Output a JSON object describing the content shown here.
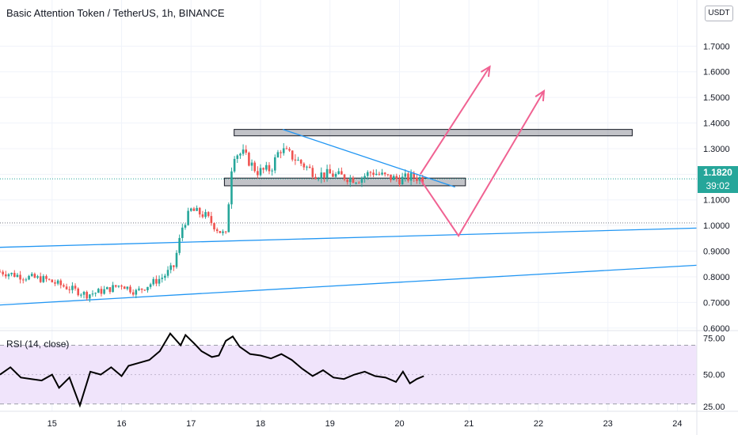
{
  "header": {
    "title": "Basic Attention Token / TetherUS, 1h, BINANCE",
    "currency": "USDT"
  },
  "price_badge": {
    "price": "1.1820",
    "countdown": "39:02"
  },
  "rsi": {
    "label": "RSI (14, close)"
  },
  "colors": {
    "up": "#26a69a",
    "down": "#ef5350",
    "trend": "#2196f3",
    "projection": "#f06292",
    "rsi_line": "#000000",
    "rsi_band": "#f0e4fb"
  },
  "chart_data": [
    {
      "type": "candlestick",
      "title": "Basic Attention Token / TetherUS, 1h, BINANCE",
      "y_axis_side": "right",
      "ylim": [
        0.59,
        1.88
      ],
      "yticks": [
        "0.6000",
        "0.7000",
        "0.8000",
        "0.9000",
        "1.0000",
        "1.1000",
        "1.2000",
        "1.3000",
        "1.4000",
        "1.5000",
        "1.6000",
        "1.7000"
      ],
      "xlim": [
        14.25,
        24.28
      ],
      "xticks": [
        "15",
        "16",
        "17",
        "18",
        "19",
        "20",
        "21",
        "22",
        "23",
        "24"
      ],
      "last_price": 1.182,
      "reference_level": 1.01,
      "price_path": [
        [
          14.25,
          0.82
        ],
        [
          14.6,
          0.8
        ],
        [
          14.9,
          0.79
        ],
        [
          15.2,
          0.76
        ],
        [
          15.5,
          0.73
        ],
        [
          15.8,
          0.75
        ],
        [
          16.0,
          0.77
        ],
        [
          16.2,
          0.74
        ],
        [
          16.4,
          0.77
        ],
        [
          16.6,
          0.8
        ],
        [
          16.75,
          0.84
        ],
        [
          16.88,
          1.0
        ],
        [
          17.0,
          1.06
        ],
        [
          17.2,
          1.04
        ],
        [
          17.4,
          0.98
        ],
        [
          17.5,
          0.96
        ],
        [
          17.6,
          1.28
        ],
        [
          17.75,
          1.28
        ],
        [
          17.95,
          1.21
        ],
        [
          18.15,
          1.22
        ],
        [
          18.28,
          1.3
        ],
        [
          18.45,
          1.27
        ],
        [
          18.6,
          1.24
        ],
        [
          18.8,
          1.2
        ],
        [
          19.0,
          1.2
        ],
        [
          19.2,
          1.19
        ],
        [
          19.4,
          1.18
        ],
        [
          19.6,
          1.21
        ],
        [
          19.8,
          1.19
        ],
        [
          20.0,
          1.18
        ],
        [
          20.2,
          1.19
        ],
        [
          20.35,
          1.182
        ]
      ],
      "annotations": {
        "resistance_zone": {
          "x": [
            17.62,
            23.35
          ],
          "y": [
            1.35,
            1.375
          ]
        },
        "support_zone": {
          "x": [
            17.48,
            20.95
          ],
          "y": [
            1.155,
            1.185
          ]
        },
        "descending_trendline": {
          "x": [
            18.32,
            20.8
          ],
          "y": [
            1.375,
            1.15
          ]
        },
        "upper_channel_line": {
          "x": [
            14.25,
            24.28
          ],
          "y": [
            0.915,
            0.99
          ]
        },
        "lower_channel_line": {
          "x": [
            14.25,
            24.28
          ],
          "y": [
            0.69,
            0.845
          ]
        },
        "projection_1": {
          "x": [
            20.3,
            21.3
          ],
          "y": [
            1.2,
            1.62
          ]
        },
        "projection_2": {
          "x": [
            20.3,
            20.85,
            22.08
          ],
          "y": [
            1.18,
            0.96,
            1.525
          ]
        }
      }
    },
    {
      "type": "line",
      "title": "RSI (14, close)",
      "ylim": [
        25,
        80
      ],
      "yticks": [
        "25.00",
        "50.00",
        "75.00"
      ],
      "band": [
        30,
        70
      ],
      "x": [
        14.25,
        14.4,
        14.55,
        14.7,
        14.85,
        15.0,
        15.1,
        15.25,
        15.4,
        15.55,
        15.7,
        15.85,
        16.0,
        16.1,
        16.25,
        16.4,
        16.55,
        16.7,
        16.85,
        16.92,
        17.05,
        17.15,
        17.3,
        17.4,
        17.5,
        17.6,
        17.7,
        17.85,
        18.0,
        18.15,
        18.3,
        18.45,
        18.6,
        18.75,
        18.9,
        19.05,
        19.2,
        19.35,
        19.5,
        19.65,
        19.8,
        19.95,
        20.05,
        20.15,
        20.25,
        20.35
      ],
      "values": [
        50,
        55,
        48,
        47,
        46,
        50,
        41,
        48,
        29,
        52,
        50,
        55,
        49,
        56,
        58,
        60,
        66,
        78,
        70,
        77,
        71,
        66,
        62,
        63,
        73,
        76,
        69,
        64,
        63,
        61,
        64,
        60,
        54,
        49,
        53,
        48,
        47,
        50,
        52,
        49,
        48,
        45,
        52,
        44,
        47,
        49
      ]
    }
  ]
}
